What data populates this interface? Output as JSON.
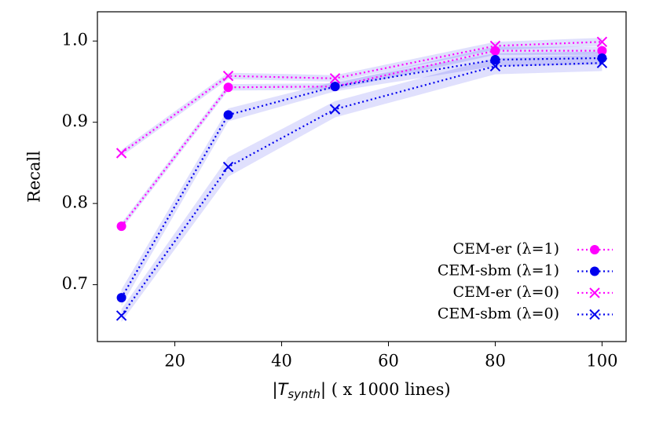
{
  "chart_data": {
    "type": "line",
    "xlabel": [
      "|",
      "T",
      "synth",
      "|",
      " ( x 1000 lines)"
    ],
    "ylabel": "Recall",
    "x": [
      10,
      30,
      50,
      80,
      100
    ],
    "xlim": [
      5.5,
      104.5
    ],
    "xticks": [
      20,
      40,
      60,
      80,
      100
    ],
    "ylim": [
      0.63,
      1.036
    ],
    "yticks": [
      0.7,
      0.8,
      0.9,
      {
        "value": 1.0,
        "label": "1.0"
      }
    ],
    "legend": "lower right",
    "series": [
      {
        "name": "CEM-er (λ=1)",
        "color": "#ff00ff",
        "marker": "circle",
        "values": [
          0.772,
          0.943,
          0.944,
          0.988,
          0.988
        ],
        "errors": [
          0.004,
          0.004,
          0.004,
          0.005,
          0.005
        ]
      },
      {
        "name": "CEM-sbm (λ=1)",
        "color": "#0000ee",
        "marker": "circle",
        "values": [
          0.684,
          0.909,
          0.944,
          0.977,
          0.979
        ],
        "errors": [
          0.01,
          0.008,
          0.006,
          0.008,
          0.008
        ]
      },
      {
        "name": "CEM-er (λ=0)",
        "color": "#ff00ff",
        "marker": "x",
        "values": [
          0.862,
          0.957,
          0.954,
          0.994,
          0.999
        ],
        "errors": [
          0.004,
          0.004,
          0.004,
          0.005,
          0.005
        ]
      },
      {
        "name": "CEM-sbm (λ=0)",
        "color": "#0000ee",
        "marker": "x",
        "values": [
          0.662,
          0.845,
          0.916,
          0.969,
          0.973
        ],
        "errors": [
          0.008,
          0.012,
          0.01,
          0.01,
          0.01
        ]
      }
    ]
  }
}
